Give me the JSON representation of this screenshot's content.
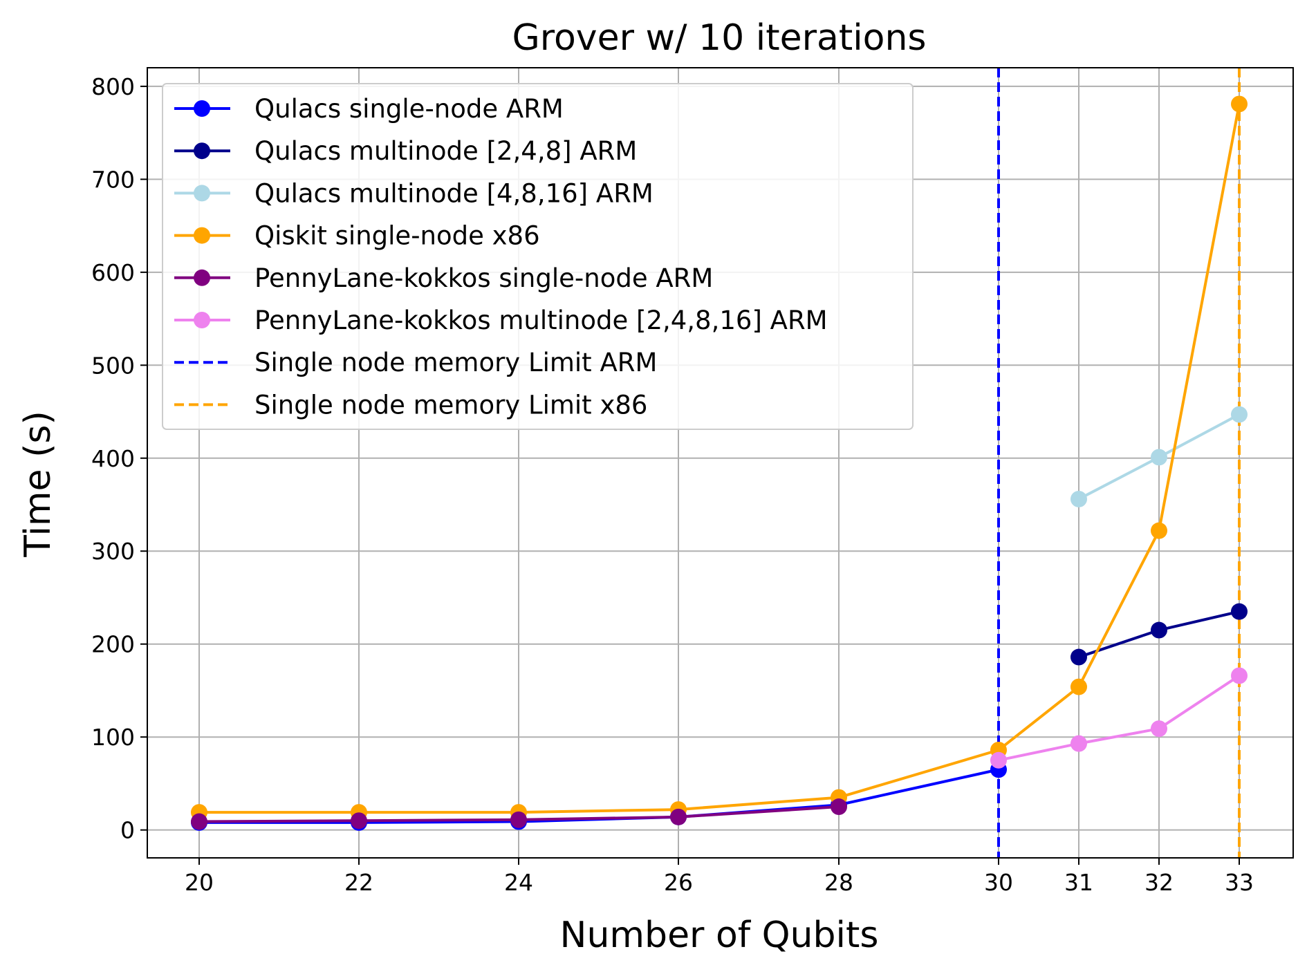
{
  "chart_data": {
    "type": "line",
    "title": "Grover w/ 10 iterations",
    "xlabel": "Number of Qubits",
    "ylabel": "Time (s)",
    "x": [
      "20",
      "22",
      "24",
      "26",
      "28",
      "30",
      "31",
      "32",
      "33"
    ],
    "ylim": [
      -30,
      820
    ],
    "yticks": [
      0,
      100,
      200,
      300,
      400,
      500,
      600,
      700,
      800
    ],
    "grid": true,
    "legend_position": "upper-left",
    "series": [
      {
        "name": "Qulacs single-node ARM",
        "color": "#0000ff",
        "style": "solid-marker",
        "x": [
          "20",
          "22",
          "24",
          "26",
          "28",
          "30"
        ],
        "y": [
          8,
          8,
          9,
          14,
          27,
          65
        ]
      },
      {
        "name": "Qulacs multinode [2,4,8] ARM",
        "color": "#00008b",
        "style": "solid-marker",
        "x": [
          "31",
          "32",
          "33"
        ],
        "y": [
          186,
          215,
          235
        ]
      },
      {
        "name": "Qulacs multinode [4,8,16] ARM",
        "color": "#add8e6",
        "style": "solid-marker",
        "x": [
          "31",
          "32",
          "33"
        ],
        "y": [
          356,
          401,
          447
        ]
      },
      {
        "name": "Qiskit single-node x86",
        "color": "#ffa500",
        "style": "solid-marker",
        "x": [
          "20",
          "22",
          "24",
          "26",
          "28",
          "30",
          "31",
          "32",
          "33"
        ],
        "y": [
          19,
          19,
          19,
          22,
          35,
          86,
          154,
          322,
          781
        ]
      },
      {
        "name": "PennyLane-kokkos single-node ARM",
        "color": "#800080",
        "style": "solid-marker",
        "x": [
          "20",
          "22",
          "24",
          "26",
          "28"
        ],
        "y": [
          9,
          10,
          11,
          14,
          25
        ]
      },
      {
        "name": "PennyLane-kokkos multinode [2,4,8,16] ARM",
        "color": "#ee82ee",
        "style": "solid-marker",
        "x": [
          "30",
          "31",
          "32",
          "33"
        ],
        "y": [
          75,
          93,
          109,
          166
        ]
      },
      {
        "name": "Single node memory Limit ARM",
        "color": "#0000ff",
        "style": "dashed-vline",
        "x_at": "30"
      },
      {
        "name": "Single node memory Limit x86",
        "color": "#ffa500",
        "style": "dashed-vline",
        "x_at": "33"
      }
    ]
  }
}
